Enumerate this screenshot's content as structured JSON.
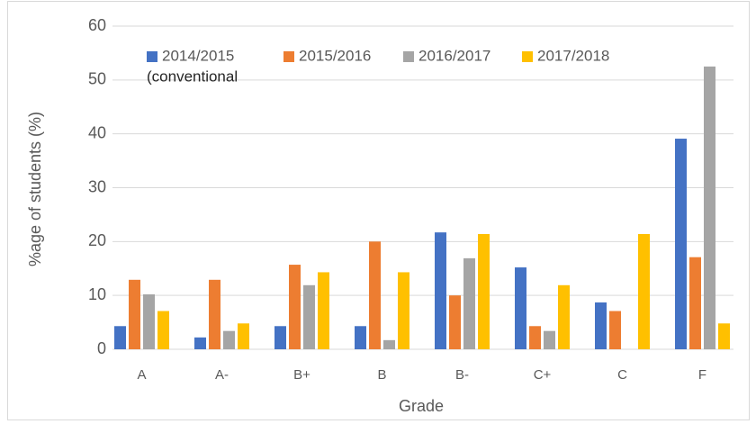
{
  "chart_data": {
    "type": "bar",
    "categories": [
      "A",
      "A-",
      "B+",
      "B",
      "B-",
      "C+",
      "C",
      "F"
    ],
    "series": [
      {
        "name": "2014/2015",
        "color": "#4472c4",
        "values": [
          4.3,
          2.2,
          4.3,
          4.3,
          21.7,
          15.2,
          8.7,
          39.1
        ]
      },
      {
        "name": "2015/2016",
        "color": "#ed7d31",
        "values": [
          12.9,
          12.9,
          15.7,
          20,
          10,
          4.3,
          7.1,
          17.1
        ]
      },
      {
        "name": "2016/2017",
        "color": "#a5a5a5",
        "values": [
          10.2,
          3.4,
          11.9,
          1.7,
          16.9,
          3.4,
          0,
          52.5
        ]
      },
      {
        "name": "2017/2018",
        "color": "#ffc000",
        "values": [
          7.1,
          4.8,
          14.3,
          14.3,
          21.4,
          11.9,
          21.4,
          4.8
        ]
      }
    ],
    "legend_note": "(conventional",
    "xlabel": "Grade",
    "ylabel": "%age of students (%)",
    "ylim": [
      0,
      60
    ],
    "yticks": [
      0,
      10,
      20,
      30,
      40,
      50,
      60
    ],
    "grid": true
  }
}
